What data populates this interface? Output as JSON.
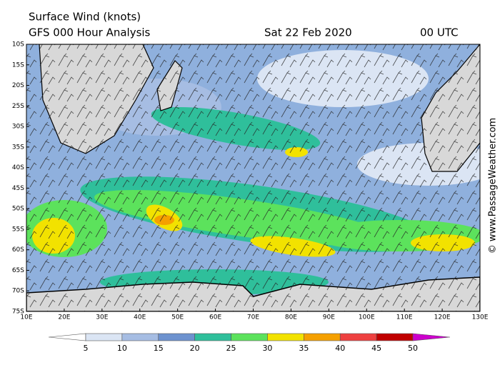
{
  "header": {
    "title": "Surface Wind (knots)",
    "subtitle": "GFS 000 Hour Analysis",
    "date": "Sat 22 Feb 2020",
    "time": "00 UTC"
  },
  "map": {
    "lat_labels": [
      "10S",
      "15S",
      "20S",
      "25S",
      "30S",
      "35S",
      "40S",
      "45S",
      "50S",
      "55S",
      "60S",
      "65S",
      "70S",
      "75S"
    ],
    "lon_labels": [
      "10E",
      "20E",
      "30E",
      "40E",
      "50E",
      "60E",
      "70E",
      "80E",
      "90E",
      "100E",
      "110E",
      "120E",
      "130E"
    ]
  },
  "colorbar": {
    "labels": [
      5,
      10,
      15,
      20,
      25,
      30,
      35,
      40,
      45,
      50
    ],
    "colors": [
      "#ffffff",
      "#dbe5f4",
      "#a6bde3",
      "#6d92cf",
      "#2fbf9b",
      "#5ce25c",
      "#f2e200",
      "#f5a000",
      "#ee4040",
      "#c00000",
      "#cc00cc"
    ]
  },
  "credit": "© www.PassageWeather.com"
}
